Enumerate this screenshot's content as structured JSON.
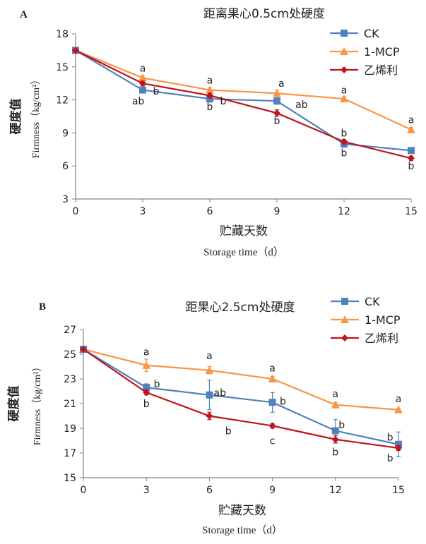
{
  "colors": {
    "CK": "#4f81bd",
    "1-MCP": "#f79646",
    "乙烯利": "#c0141c",
    "axis": "#808080",
    "text": "#222222"
  },
  "chart_data": [
    {
      "type": "line",
      "panel": "A",
      "title": "距离果心0.5cm处硬度",
      "ylabel_cn": "硬度值",
      "ylabel_en": "Firmness（kg/cm²）",
      "xlabel_cn": "贮藏天数",
      "xlabel_en": "Storage time（d）",
      "x": [
        0,
        3,
        6,
        9,
        12,
        15
      ],
      "xlim": [
        0,
        15
      ],
      "ylim": [
        3,
        18
      ],
      "yticks": [
        3,
        6,
        9,
        12,
        15,
        18
      ],
      "legend_position": "top-right",
      "series": [
        {
          "name": "CK",
          "marker": "square",
          "values": [
            16.5,
            12.9,
            12.1,
            11.9,
            8.0,
            7.4
          ],
          "error": [
            0,
            0.2,
            0.3,
            0.3,
            0.3,
            0.2
          ]
        },
        {
          "name": "1-MCP",
          "marker": "triangle",
          "values": [
            16.5,
            14.0,
            12.9,
            12.6,
            12.1,
            9.3
          ],
          "error": [
            0,
            0.2,
            0.2,
            0.3,
            0.2,
            0.2
          ]
        },
        {
          "name": "乙烯利",
          "marker": "diamond",
          "values": [
            16.5,
            13.5,
            12.4,
            10.8,
            8.2,
            6.7
          ],
          "error": [
            0,
            0.2,
            0.2,
            0.3,
            0.2,
            0.2
          ]
        }
      ],
      "annotations": [
        {
          "text": "a",
          "x": 3,
          "y": 14.9
        },
        {
          "text": "b",
          "x": 3.6,
          "y": 12.8
        },
        {
          "text": "ab",
          "x": 2.8,
          "y": 11.9
        },
        {
          "text": "a",
          "x": 6,
          "y": 13.8
        },
        {
          "text": "b",
          "x": 6.6,
          "y": 11.9
        },
        {
          "text": "b",
          "x": 6,
          "y": 11.4
        },
        {
          "text": "a",
          "x": 9.2,
          "y": 13.5
        },
        {
          "text": "ab",
          "x": 10.1,
          "y": 11.6
        },
        {
          "text": "b",
          "x": 9,
          "y": 10.1
        },
        {
          "text": "a",
          "x": 12,
          "y": 12.9
        },
        {
          "text": "b",
          "x": 12,
          "y": 9.0
        },
        {
          "text": "b",
          "x": 12,
          "y": 7.2
        },
        {
          "text": "a",
          "x": 15,
          "y": 10.2
        },
        {
          "text": "b",
          "x": 15,
          "y": 6.0
        }
      ]
    },
    {
      "type": "line",
      "panel": "B",
      "title": "距果心2.5cm处硬度",
      "ylabel_cn": "硬度值",
      "ylabel_en": "Firmness（kg/cm²）",
      "xlabel_cn": "贮藏天数",
      "xlabel_en": "Storage time（d）",
      "x": [
        0,
        3,
        6,
        9,
        12,
        15
      ],
      "xlim": [
        0,
        15
      ],
      "ylim": [
        15,
        27
      ],
      "yticks": [
        15,
        17,
        19,
        21,
        23,
        25,
        27
      ],
      "legend_position": "top-right",
      "series": [
        {
          "name": "CK",
          "marker": "square",
          "values": [
            25.4,
            22.3,
            21.7,
            21.1,
            18.8,
            17.7
          ],
          "error": [
            0,
            0.3,
            1.2,
            0.8,
            0.9,
            1.0
          ]
        },
        {
          "name": "1-MCP",
          "marker": "triangle",
          "values": [
            25.4,
            24.1,
            23.7,
            23.0,
            20.9,
            20.5
          ],
          "error": [
            0,
            0.5,
            0.3,
            0.2,
            0.2,
            0.1
          ]
        },
        {
          "name": "乙烯利",
          "marker": "diamond",
          "values": [
            25.4,
            21.9,
            20.0,
            19.2,
            18.1,
            17.4
          ],
          "error": [
            0,
            0.2,
            0.3,
            0.2,
            0.3,
            0.2
          ]
        }
      ],
      "annotations": [
        {
          "text": "a",
          "x": 3,
          "y": 25.2
        },
        {
          "text": "b",
          "x": 3.5,
          "y": 22.6
        },
        {
          "text": "b",
          "x": 3,
          "y": 21.0
        },
        {
          "text": "a",
          "x": 6,
          "y": 24.9
        },
        {
          "text": "ab",
          "x": 6.5,
          "y": 21.9
        },
        {
          "text": "b",
          "x": 6.9,
          "y": 18.8
        },
        {
          "text": "a",
          "x": 9,
          "y": 23.9
        },
        {
          "text": "b",
          "x": 9.5,
          "y": 21.2
        },
        {
          "text": "c",
          "x": 9,
          "y": 18.0
        },
        {
          "text": "a",
          "x": 12,
          "y": 21.8
        },
        {
          "text": "b",
          "x": 12.3,
          "y": 19.3
        },
        {
          "text": "b",
          "x": 12,
          "y": 17.1
        },
        {
          "text": "a",
          "x": 15,
          "y": 21.4
        },
        {
          "text": "b",
          "x": 14.6,
          "y": 18.3
        },
        {
          "text": "b",
          "x": 14.6,
          "y": 16.6
        }
      ]
    }
  ]
}
